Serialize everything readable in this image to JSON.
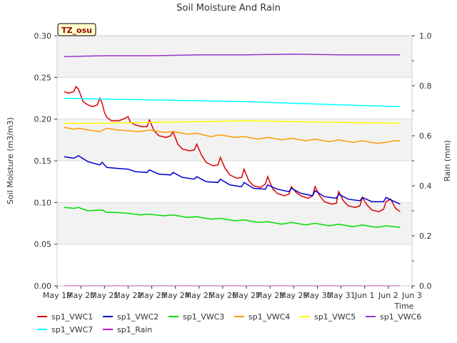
{
  "chart_data": {
    "type": "line",
    "title": "Soil Moisture And Rain",
    "badge": "TZ_osu",
    "xlabel": "Time",
    "ylabel": "Soil Moisture (m3/m3)",
    "y2label": "Rain (mm)",
    "x_ticks": [
      "May 19",
      "May 20",
      "May 21",
      "May 22",
      "May 23",
      "May 24",
      "May 25",
      "May 26",
      "May 27",
      "May 28",
      "May 29",
      "May 30",
      "May 31",
      "Jun 1",
      "Jun 2",
      "Jun 3"
    ],
    "xlim": [
      0,
      15
    ],
    "ylim": [
      0.0,
      0.3
    ],
    "y_ticks": [
      "0.00",
      "0.05",
      "0.10",
      "0.15",
      "0.20",
      "0.25",
      "0.30"
    ],
    "y2lim": [
      0.0,
      1.0
    ],
    "y2_ticks": [
      "0.0",
      "0.2",
      "0.4",
      "0.6",
      "0.8",
      "1.0"
    ],
    "x_unit": "days since May 19",
    "legend_position": "bottom",
    "background_bands": true,
    "series": [
      {
        "name": "sp1_VWC1",
        "color": "#dd0000",
        "axis": "left",
        "x": [
          0.3,
          0.5,
          0.7,
          0.8,
          0.9,
          1.1,
          1.3,
          1.5,
          1.7,
          1.8,
          1.9,
          2.0,
          2.1,
          2.3,
          2.6,
          2.8,
          3.0,
          3.1,
          3.3,
          3.6,
          3.8,
          3.9,
          4.1,
          4.3,
          4.6,
          4.8,
          4.9,
          5.1,
          5.3,
          5.6,
          5.8,
          5.9,
          6.1,
          6.3,
          6.6,
          6.8,
          6.9,
          7.1,
          7.3,
          7.6,
          7.8,
          7.9,
          8.1,
          8.3,
          8.6,
          8.8,
          8.9,
          9.1,
          9.3,
          9.6,
          9.8,
          9.9,
          10.1,
          10.3,
          10.6,
          10.8,
          10.9,
          11.1,
          11.3,
          11.6,
          11.8,
          11.9,
          12.1,
          12.3,
          12.6,
          12.8,
          12.9,
          13.1,
          13.3,
          13.6,
          13.8,
          13.9,
          14.1,
          14.3,
          14.5
        ],
        "y": [
          0.233,
          0.231,
          0.233,
          0.239,
          0.236,
          0.221,
          0.217,
          0.215,
          0.217,
          0.225,
          0.219,
          0.208,
          0.202,
          0.198,
          0.198,
          0.2,
          0.203,
          0.196,
          0.193,
          0.191,
          0.191,
          0.199,
          0.186,
          0.18,
          0.178,
          0.18,
          0.185,
          0.17,
          0.164,
          0.162,
          0.163,
          0.17,
          0.157,
          0.148,
          0.144,
          0.145,
          0.154,
          0.141,
          0.133,
          0.129,
          0.13,
          0.14,
          0.126,
          0.12,
          0.118,
          0.122,
          0.131,
          0.117,
          0.111,
          0.108,
          0.11,
          0.119,
          0.112,
          0.108,
          0.105,
          0.108,
          0.119,
          0.108,
          0.101,
          0.098,
          0.099,
          0.113,
          0.102,
          0.096,
          0.094,
          0.096,
          0.106,
          0.097,
          0.091,
          0.089,
          0.092,
          0.101,
          0.104,
          0.093,
          0.089
        ]
      },
      {
        "name": "sp1_VWC2",
        "color": "#0000cc",
        "axis": "left",
        "x": [
          0.3,
          0.7,
          0.9,
          1.3,
          1.8,
          1.9,
          2.1,
          2.5,
          3.0,
          3.3,
          3.8,
          3.9,
          4.3,
          4.8,
          4.9,
          5.3,
          5.8,
          5.9,
          6.3,
          6.8,
          6.9,
          7.3,
          7.8,
          7.9,
          8.3,
          8.8,
          8.9,
          9.3,
          9.8,
          9.9,
          10.3,
          10.8,
          10.9,
          11.3,
          11.8,
          11.9,
          12.3,
          12.8,
          12.9,
          13.3,
          13.8,
          13.9,
          14.1,
          14.5
        ],
        "y": [
          0.155,
          0.153,
          0.156,
          0.149,
          0.145,
          0.148,
          0.142,
          0.141,
          0.14,
          0.137,
          0.136,
          0.139,
          0.134,
          0.133,
          0.136,
          0.13,
          0.128,
          0.131,
          0.125,
          0.124,
          0.128,
          0.121,
          0.119,
          0.124,
          0.117,
          0.116,
          0.121,
          0.116,
          0.113,
          0.117,
          0.111,
          0.108,
          0.114,
          0.107,
          0.105,
          0.11,
          0.104,
          0.102,
          0.106,
          0.101,
          0.101,
          0.106,
          0.103,
          0.098
        ]
      },
      {
        "name": "sp1_VWC3",
        "color": "#00dd00",
        "axis": "left",
        "x": [
          0.3,
          0.7,
          0.9,
          1.3,
          1.9,
          2.1,
          2.5,
          3.0,
          3.5,
          3.9,
          4.5,
          4.9,
          5.5,
          5.9,
          6.5,
          6.9,
          7.5,
          7.9,
          8.5,
          8.9,
          9.5,
          9.9,
          10.5,
          10.9,
          11.5,
          11.9,
          12.5,
          12.9,
          13.5,
          13.9,
          14.5
        ],
        "y": [
          0.094,
          0.093,
          0.094,
          0.09,
          0.091,
          0.088,
          0.088,
          0.087,
          0.085,
          0.086,
          0.084,
          0.085,
          0.082,
          0.083,
          0.08,
          0.081,
          0.078,
          0.079,
          0.076,
          0.077,
          0.074,
          0.076,
          0.073,
          0.075,
          0.072,
          0.074,
          0.071,
          0.073,
          0.07,
          0.072,
          0.07
        ]
      },
      {
        "name": "sp1_VWC4",
        "color": "#ff9900",
        "axis": "left",
        "x": [
          0.3,
          0.7,
          0.9,
          1.3,
          1.8,
          2.1,
          2.5,
          3.0,
          3.5,
          3.9,
          4.5,
          4.9,
          5.5,
          5.9,
          6.5,
          6.9,
          7.5,
          7.9,
          8.5,
          8.9,
          9.5,
          9.9,
          10.5,
          10.9,
          11.5,
          11.9,
          12.5,
          12.9,
          13.5,
          13.9,
          14.2,
          14.5
        ],
        "y": [
          0.19,
          0.188,
          0.189,
          0.187,
          0.185,
          0.189,
          0.187,
          0.186,
          0.185,
          0.187,
          0.184,
          0.185,
          0.182,
          0.183,
          0.179,
          0.181,
          0.178,
          0.179,
          0.176,
          0.178,
          0.175,
          0.177,
          0.174,
          0.176,
          0.173,
          0.175,
          0.172,
          0.174,
          0.171,
          0.172,
          0.174,
          0.174
        ]
      },
      {
        "name": "sp1_VWC5",
        "color": "#ffff00",
        "axis": "left",
        "x": [
          0.3,
          2.0,
          4.0,
          6.0,
          8.0,
          10.0,
          12.0,
          14.5
        ],
        "y": [
          0.195,
          0.195,
          0.196,
          0.197,
          0.198,
          0.197,
          0.196,
          0.195
        ]
      },
      {
        "name": "sp1_VWC6",
        "color": "#9933cc",
        "axis": "left",
        "x": [
          0.3,
          2.0,
          4.0,
          6.0,
          8.0,
          10.0,
          12.0,
          14.5
        ],
        "y": [
          0.275,
          0.276,
          0.276,
          0.277,
          0.277,
          0.278,
          0.277,
          0.277
        ]
      },
      {
        "name": "sp1_VWC7",
        "color": "#00ffff",
        "axis": "left",
        "x": [
          0.3,
          2.0,
          4.0,
          6.0,
          8.0,
          10.0,
          12.0,
          14.5
        ],
        "y": [
          0.225,
          0.224,
          0.223,
          0.222,
          0.221,
          0.219,
          0.217,
          0.215
        ]
      },
      {
        "name": "sp1_Rain",
        "color": "#cc00cc",
        "axis": "right",
        "x": [
          0.3,
          14.5
        ],
        "y": [
          0.0,
          0.0
        ]
      }
    ]
  }
}
